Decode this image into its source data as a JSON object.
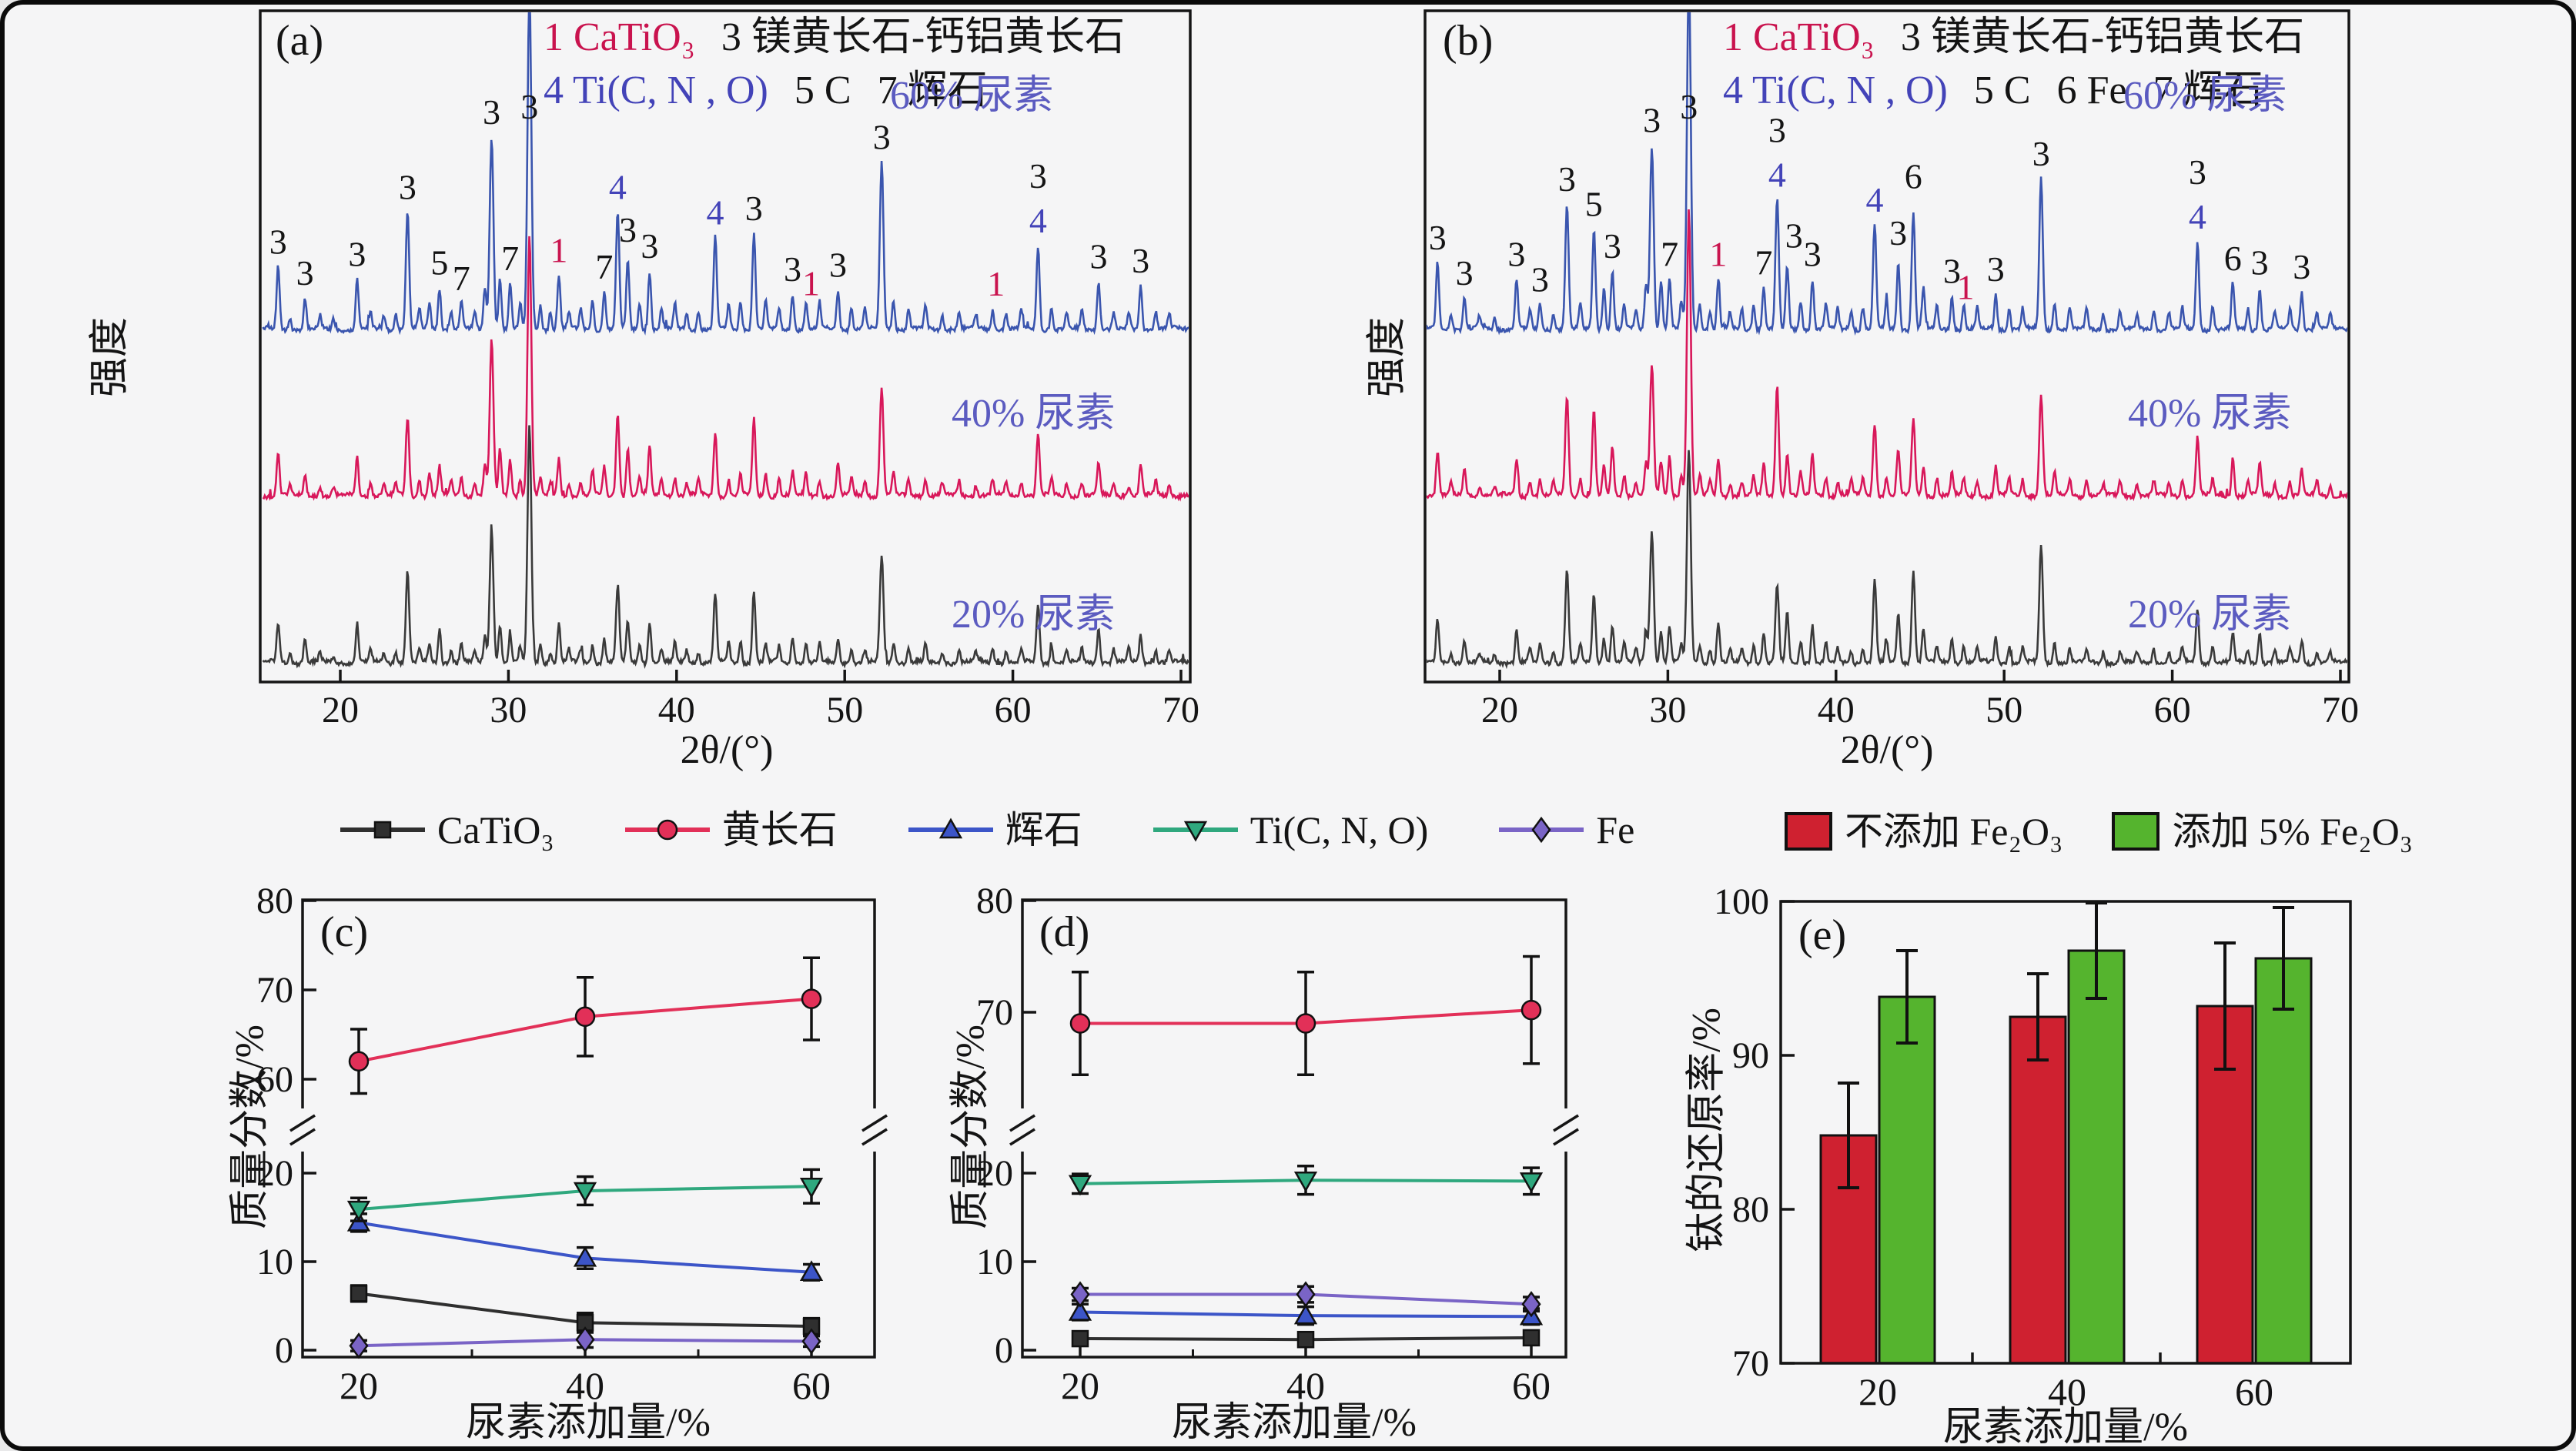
{
  "figure": {
    "bg": "#f5f5f6",
    "border_color": "#0b0b0b",
    "accent_label_color": "#5b5bc0"
  },
  "panels": {
    "a": {
      "letter": "(a)",
      "xlabel": "2θ/(°)",
      "ylabel": "强度",
      "legend": {
        "i1": "1 CaTiO₃",
        "i2": "3 镁黄长石-钙铝黄长石",
        "i3": "4 Ti(C, N , O)",
        "i4": "5 C",
        "i5": "7 辉石"
      },
      "series_labels": [
        "60% 尿素",
        "40% 尿素",
        "20% 尿素"
      ]
    },
    "b": {
      "letter": "(b)",
      "xlabel": "2θ/(°)",
      "ylabel": "强度",
      "legend": {
        "i1": "1 CaTiO₃",
        "i2": "3 镁黄长石-钙铝黄长石",
        "i3": "4 Ti(C, N , O)",
        "i4": "5 C",
        "i4b": "6 Fe",
        "i5": "7 辉石"
      },
      "series_labels": [
        "60% 尿素",
        "40% 尿素",
        "20% 尿素"
      ]
    },
    "c": {
      "letter": "(c)",
      "xlabel": "尿素添加量/%",
      "ylabel": "质量分数/%"
    },
    "d": {
      "letter": "(d)",
      "xlabel": "尿素添加量/%",
      "ylabel": "质量分数/%"
    },
    "e": {
      "letter": "(e)",
      "xlabel": "尿素添加量/%",
      "ylabel": "钛的还原率/%"
    }
  },
  "phase_legend": [
    {
      "label": "CaTiO₃",
      "color": "#2f2f2f",
      "marker": "square"
    },
    {
      "label": "黄长石",
      "color": "#e23058",
      "marker": "circle"
    },
    {
      "label": "辉石",
      "color": "#3c55c8",
      "marker": "triangle-up"
    },
    {
      "label": "Ti(C, N, O)",
      "color": "#2fa87e",
      "marker": "triangle-down"
    },
    {
      "label": "Fe",
      "color": "#7a64c6",
      "marker": "diamond"
    }
  ],
  "chart_data": [
    {
      "id": "a",
      "type": "line",
      "subtype": "xrd-stack",
      "title": "(a)",
      "xlabel": "2θ/(°)",
      "ylabel": "强度",
      "x_ticks": [
        20,
        30,
        40,
        50,
        60,
        70
      ],
      "x_range": [
        15.4,
        70.6
      ],
      "series": [
        {
          "name": "60% 尿素",
          "color": "#3a55ae"
        },
        {
          "name": "40% 尿素",
          "color": "#d8175a"
        },
        {
          "name": "20% 尿素",
          "color": "#3a3a3a"
        }
      ],
      "peaks": [
        [
          16.3,
          0.3
        ],
        [
          17.0,
          0.06
        ],
        [
          17.9,
          0.15
        ],
        [
          18.8,
          0.06
        ],
        [
          19.6,
          0.05
        ],
        [
          21.0,
          0.24
        ],
        [
          21.8,
          0.08
        ],
        [
          22.6,
          0.07
        ],
        [
          23.3,
          0.08
        ],
        [
          24.0,
          0.56
        ],
        [
          24.7,
          0.1
        ],
        [
          25.3,
          0.12
        ],
        [
          25.9,
          0.2
        ],
        [
          26.6,
          0.09
        ],
        [
          27.2,
          0.14
        ],
        [
          28.0,
          0.08
        ],
        [
          28.6,
          0.2
        ],
        [
          29.0,
          0.92
        ],
        [
          29.5,
          0.25
        ],
        [
          30.1,
          0.22
        ],
        [
          30.7,
          0.12
        ],
        [
          31.25,
          1.62
        ],
        [
          31.9,
          0.12
        ],
        [
          32.5,
          0.09
        ],
        [
          33.0,
          0.26
        ],
        [
          33.6,
          0.08
        ],
        [
          34.3,
          0.1
        ],
        [
          35.0,
          0.14
        ],
        [
          35.7,
          0.18
        ],
        [
          36.5,
          0.56
        ],
        [
          37.1,
          0.32
        ],
        [
          37.8,
          0.12
        ],
        [
          38.4,
          0.28
        ],
        [
          39.1,
          0.1
        ],
        [
          39.9,
          0.12
        ],
        [
          40.6,
          0.08
        ],
        [
          41.3,
          0.09
        ],
        [
          42.3,
          0.44
        ],
        [
          43.1,
          0.12
        ],
        [
          43.8,
          0.14
        ],
        [
          44.6,
          0.46
        ],
        [
          45.3,
          0.14
        ],
        [
          46.1,
          0.1
        ],
        [
          46.9,
          0.17
        ],
        [
          47.7,
          0.13
        ],
        [
          48.5,
          0.11
        ],
        [
          49.6,
          0.19
        ],
        [
          50.4,
          0.11
        ],
        [
          51.2,
          0.1
        ],
        [
          52.2,
          0.8
        ],
        [
          52.9,
          0.14
        ],
        [
          53.8,
          0.1
        ],
        [
          54.8,
          0.11
        ],
        [
          55.8,
          0.07
        ],
        [
          56.8,
          0.09
        ],
        [
          57.8,
          0.07
        ],
        [
          58.8,
          0.1
        ],
        [
          59.6,
          0.08
        ],
        [
          60.5,
          0.09
        ],
        [
          61.5,
          0.4
        ],
        [
          62.3,
          0.11
        ],
        [
          63.2,
          0.08
        ],
        [
          64.1,
          0.09
        ],
        [
          65.1,
          0.23
        ],
        [
          66.0,
          0.08
        ],
        [
          66.9,
          0.08
        ],
        [
          67.6,
          0.21
        ],
        [
          68.5,
          0.09
        ],
        [
          69.3,
          0.07
        ]
      ],
      "peak_labels": [
        [
          16.3,
          "3",
          "k",
          0
        ],
        [
          17.9,
          "3",
          "k",
          0
        ],
        [
          21,
          "3",
          "k",
          0
        ],
        [
          24,
          "3",
          "k",
          0
        ],
        [
          25.9,
          "5",
          "k",
          0
        ],
        [
          27.2,
          "7",
          "k",
          -4
        ],
        [
          29,
          "3",
          "k",
          0
        ],
        [
          30.1,
          "7",
          "k",
          0
        ],
        [
          31.25,
          "3",
          "k",
          0
        ],
        [
          33,
          "1",
          "r",
          0
        ],
        [
          35.7,
          "7",
          "k",
          0
        ],
        [
          36.5,
          "4",
          "b",
          0
        ],
        [
          37.1,
          "3",
          "k",
          10
        ],
        [
          38.4,
          "3",
          "k",
          0
        ],
        [
          42.3,
          "4",
          "b",
          0
        ],
        [
          44.6,
          "3",
          "k",
          0
        ],
        [
          46.9,
          "3",
          "k",
          0
        ],
        [
          48,
          "1",
          "r",
          -8
        ],
        [
          49.6,
          "3",
          "k",
          0
        ],
        [
          52.2,
          "3",
          "k",
          0
        ],
        [
          59,
          "1",
          "r",
          0
        ],
        [
          61.5,
          "4",
          "b",
          0
        ],
        [
          61.5,
          "3",
          "k",
          58
        ],
        [
          65.1,
          "3",
          "k",
          0
        ],
        [
          67.6,
          "3",
          "k",
          0
        ]
      ]
    },
    {
      "id": "b",
      "type": "line",
      "subtype": "xrd-stack",
      "title": "(b)",
      "xlabel": "2θ/(°)",
      "ylabel": "强度",
      "x_ticks": [
        20,
        30,
        40,
        50,
        60,
        70
      ],
      "x_range": [
        15.4,
        70.6
      ],
      "series": [
        {
          "name": "60% 尿素",
          "color": "#3a55ae"
        },
        {
          "name": "40% 尿素",
          "color": "#d8175a"
        },
        {
          "name": "20% 尿素",
          "color": "#3a3a3a"
        }
      ],
      "peaks": [
        [
          16.3,
          0.32
        ],
        [
          17.1,
          0.07
        ],
        [
          17.9,
          0.15
        ],
        [
          18.8,
          0.06
        ],
        [
          19.7,
          0.06
        ],
        [
          21.0,
          0.24
        ],
        [
          21.8,
          0.09
        ],
        [
          22.4,
          0.12
        ],
        [
          23.2,
          0.08
        ],
        [
          24.0,
          0.6
        ],
        [
          24.8,
          0.12
        ],
        [
          25.6,
          0.48
        ],
        [
          26.2,
          0.2
        ],
        [
          26.7,
          0.28
        ],
        [
          27.4,
          0.12
        ],
        [
          28.1,
          0.09
        ],
        [
          28.7,
          0.22
        ],
        [
          29.05,
          0.88
        ],
        [
          29.6,
          0.24
        ],
        [
          30.1,
          0.24
        ],
        [
          30.8,
          0.13
        ],
        [
          31.25,
          1.7
        ],
        [
          31.9,
          0.13
        ],
        [
          32.5,
          0.09
        ],
        [
          33.0,
          0.24
        ],
        [
          33.7,
          0.08
        ],
        [
          34.4,
          0.1
        ],
        [
          35.1,
          0.13
        ],
        [
          35.7,
          0.2
        ],
        [
          36.5,
          0.62
        ],
        [
          37.1,
          0.3
        ],
        [
          37.9,
          0.14
        ],
        [
          38.6,
          0.24
        ],
        [
          39.4,
          0.12
        ],
        [
          40.1,
          0.1
        ],
        [
          40.9,
          0.09
        ],
        [
          41.6,
          0.11
        ],
        [
          42.3,
          0.5
        ],
        [
          43.0,
          0.14
        ],
        [
          43.7,
          0.32
        ],
        [
          44.6,
          0.56
        ],
        [
          45.2,
          0.2
        ],
        [
          46.0,
          0.11
        ],
        [
          46.9,
          0.16
        ],
        [
          47.6,
          0.12
        ],
        [
          48.4,
          0.1
        ],
        [
          49.5,
          0.17
        ],
        [
          50.3,
          0.11
        ],
        [
          51.1,
          0.1
        ],
        [
          52.2,
          0.72
        ],
        [
          53.0,
          0.13
        ],
        [
          53.9,
          0.1
        ],
        [
          54.9,
          0.1
        ],
        [
          55.9,
          0.08
        ],
        [
          56.9,
          0.09
        ],
        [
          57.9,
          0.07
        ],
        [
          58.9,
          0.09
        ],
        [
          59.8,
          0.08
        ],
        [
          60.6,
          0.1
        ],
        [
          61.5,
          0.42
        ],
        [
          62.4,
          0.11
        ],
        [
          63.6,
          0.22
        ],
        [
          64.5,
          0.1
        ],
        [
          65.2,
          0.2
        ],
        [
          66.1,
          0.08
        ],
        [
          67.0,
          0.09
        ],
        [
          67.7,
          0.18
        ],
        [
          68.6,
          0.09
        ],
        [
          69.4,
          0.07
        ]
      ],
      "peak_labels": [
        [
          16.3,
          "3",
          "k",
          0
        ],
        [
          17.9,
          "3",
          "k",
          0
        ],
        [
          21,
          "3",
          "k",
          0
        ],
        [
          22.4,
          "3",
          "k",
          0
        ],
        [
          24,
          "3",
          "k",
          0
        ],
        [
          25.6,
          "5",
          "k",
          0
        ],
        [
          26.7,
          "3",
          "k",
          0
        ],
        [
          29.05,
          "3",
          "k",
          0
        ],
        [
          30.1,
          "7",
          "k",
          0
        ],
        [
          31.25,
          "3",
          "k",
          0
        ],
        [
          33,
          "1",
          "r",
          0
        ],
        [
          35.7,
          "7",
          "k",
          0
        ],
        [
          36.5,
          "4",
          "b",
          0
        ],
        [
          36.5,
          "3",
          "k",
          58
        ],
        [
          37.5,
          "3",
          "k",
          8
        ],
        [
          38.6,
          "3",
          "k",
          0
        ],
        [
          42.3,
          "4",
          "b",
          0
        ],
        [
          43.7,
          "3",
          "k",
          6
        ],
        [
          44.6,
          "6",
          "k",
          14
        ],
        [
          46.9,
          "3",
          "k",
          0
        ],
        [
          47.7,
          "1",
          "r",
          -10
        ],
        [
          49.5,
          "3",
          "k",
          0
        ],
        [
          52.2,
          "3",
          "k",
          0
        ],
        [
          61.5,
          "4",
          "b",
          0
        ],
        [
          61.5,
          "3",
          "k",
          58
        ],
        [
          63.6,
          "6",
          "k",
          0
        ],
        [
          65.2,
          "3",
          "k",
          0
        ],
        [
          67.7,
          "3",
          "k",
          0
        ]
      ]
    },
    {
      "id": "c",
      "type": "line",
      "title": "(c)",
      "xlabel": "尿素添加量/%",
      "ylabel": "质量分数/%",
      "categories": [
        20,
        40,
        60
      ],
      "x_ticks_minor": [
        30,
        50
      ],
      "axis_break": true,
      "y_ticks_lower": [
        0,
        10,
        20
      ],
      "y_ticks_upper": [
        60,
        70,
        80
      ],
      "ylim": [
        0,
        80
      ],
      "series": [
        {
          "name": "CaTiO₃",
          "color": "#2f2f2f",
          "marker": "square",
          "values": [
            6.4,
            3.1,
            2.7
          ],
          "err": [
            0.9,
            1.1,
            0.9
          ]
        },
        {
          "name": "黄长石",
          "color": "#e23058",
          "marker": "circle",
          "values": [
            62,
            67,
            69
          ],
          "err": [
            3.6,
            4.4,
            4.6
          ]
        },
        {
          "name": "辉石",
          "color": "#3c55c8",
          "marker": "triangle-up",
          "values": [
            14.4,
            10.4,
            8.8
          ],
          "err": [
            1.0,
            1.2,
            0.9
          ]
        },
        {
          "name": "Ti(C, N, O)",
          "color": "#2fa87e",
          "marker": "triangle-down",
          "values": [
            15.9,
            18.0,
            18.5
          ],
          "err": [
            1.3,
            1.6,
            1.9
          ]
        },
        {
          "name": "Fe",
          "color": "#7a64c6",
          "marker": "diamond",
          "values": [
            0.5,
            1.2,
            1.0
          ],
          "err": [
            0.6,
            0.9,
            0.6
          ]
        }
      ]
    },
    {
      "id": "d",
      "type": "line",
      "title": "(d)",
      "xlabel": "尿素添加量/%",
      "ylabel": "质量分数/%",
      "categories": [
        20,
        40,
        60
      ],
      "x_ticks_minor": [
        30,
        50
      ],
      "axis_break": true,
      "y_ticks_lower": [
        0,
        10,
        20
      ],
      "y_ticks_upper": [
        70,
        80
      ],
      "ylim": [
        0,
        80
      ],
      "series": [
        {
          "name": "CaTiO₃",
          "color": "#2f2f2f",
          "marker": "square",
          "values": [
            1.3,
            1.2,
            1.4
          ],
          "err": [
            0.6,
            0.8,
            0.6
          ]
        },
        {
          "name": "黄长石",
          "color": "#e23058",
          "marker": "circle",
          "values": [
            69,
            69,
            70.2
          ],
          "err": [
            4.6,
            4.6,
            4.8
          ]
        },
        {
          "name": "辉石",
          "color": "#3c55c8",
          "marker": "triangle-up",
          "values": [
            4.3,
            3.9,
            3.8
          ],
          "err": [
            0.9,
            1.0,
            0.9
          ]
        },
        {
          "name": "Ti(C, N, O)",
          "color": "#2fa87e",
          "marker": "triangle-down",
          "values": [
            18.8,
            19.2,
            19.1
          ],
          "err": [
            1.1,
            1.6,
            1.5
          ]
        },
        {
          "name": "Fe",
          "color": "#7a64c6",
          "marker": "diamond",
          "values": [
            6.3,
            6.3,
            5.2
          ],
          "err": [
            0.7,
            0.9,
            0.8
          ]
        }
      ]
    },
    {
      "id": "e",
      "type": "bar",
      "title": "(e)",
      "xlabel": "尿素添加量/%",
      "ylabel": "钛的还原率/%",
      "categories": [
        20,
        40,
        60
      ],
      "ylim": [
        70,
        100
      ],
      "y_ticks": [
        70,
        80,
        90,
        100
      ],
      "legend_position": "top",
      "series": [
        {
          "name": "不添加 Fe₂O₃",
          "color": "#cf2130",
          "values": [
            84.8,
            92.5,
            93.2
          ],
          "err": [
            3.4,
            2.8,
            4.1
          ]
        },
        {
          "name": "添加 5% Fe₂O₃",
          "color": "#55b42e",
          "values": [
            93.8,
            96.8,
            96.3
          ],
          "err": [
            3.0,
            3.1,
            3.3
          ]
        }
      ]
    }
  ]
}
